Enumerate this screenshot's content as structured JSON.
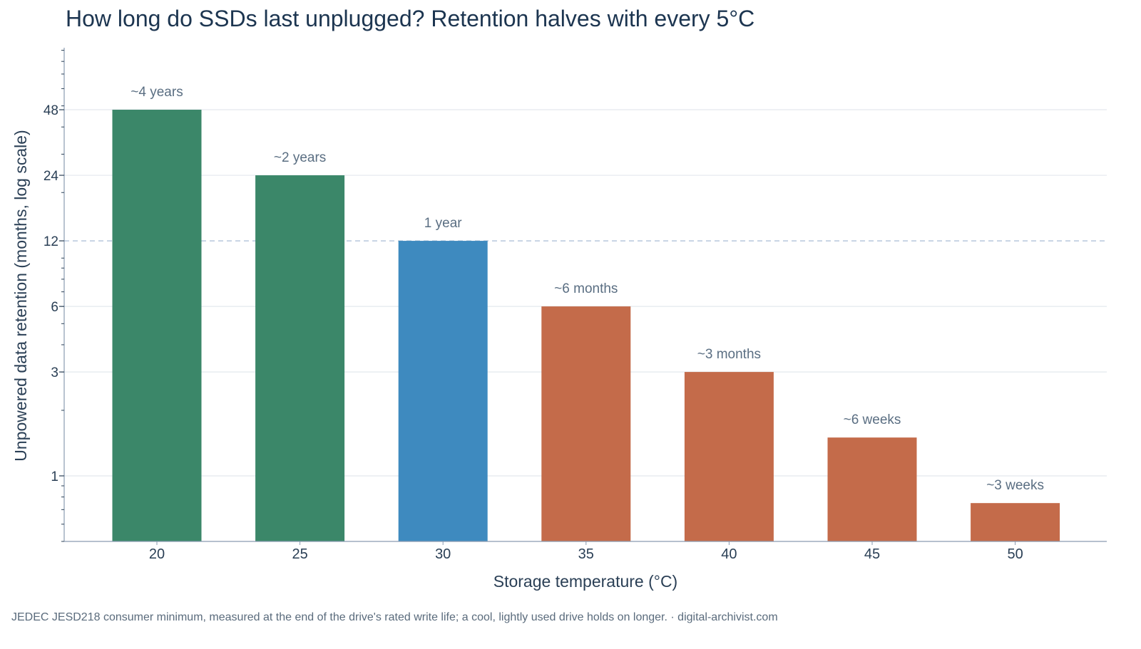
{
  "chart_data": {
    "type": "bar",
    "title": "How long do SSDs last unplugged? Retention halves with every 5°C",
    "xlabel": "Storage temperature (°C)",
    "ylabel": "Unpowered data retention (months, log scale)",
    "yscale": "log",
    "ylim": [
      0.5,
      96
    ],
    "yticks": [
      1,
      3,
      6,
      12,
      24,
      48
    ],
    "categories": [
      "20",
      "25",
      "30",
      "35",
      "40",
      "45",
      "50"
    ],
    "values": [
      48,
      24,
      12,
      6,
      3,
      1.5,
      0.75
    ],
    "data_labels": [
      "~4 years",
      "~2 years",
      "1 year",
      "~6 months",
      "~3 months",
      "~6 weeks",
      "~3 weeks"
    ],
    "bar_colors": [
      "#3b8769",
      "#3b8769",
      "#3e8abf",
      "#c46b4a",
      "#c46b4a",
      "#c46b4a",
      "#c46b4a"
    ],
    "reference_line": 12,
    "grid": true,
    "footnote": "JEDEC JESD218 consumer minimum, measured at the end of the drive's rated write life; a cool, lightly used drive holds on longer.  ·  digital-archivist.com"
  },
  "colors": {
    "axis": "#8a9bb0",
    "grid": "#e3e8ee",
    "reference_line": "#b8c8dc"
  }
}
